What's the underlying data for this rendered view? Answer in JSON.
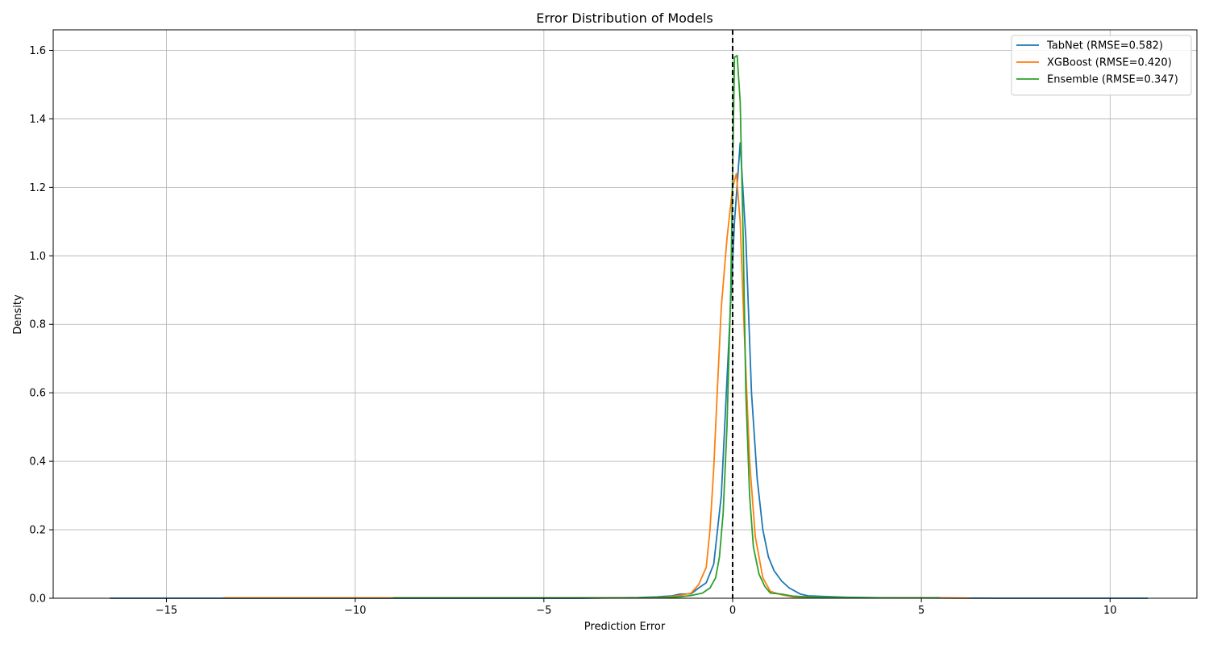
{
  "chart_data": {
    "type": "line",
    "title": "Error Distribution of Models",
    "xlabel": "Prediction Error",
    "ylabel": "Density",
    "xlim": [
      -18,
      12.3
    ],
    "ylim": [
      0,
      1.66
    ],
    "x_ticks": [
      -15,
      -10,
      -5,
      0,
      5,
      10
    ],
    "x_tick_labels": [
      "−15",
      "−10",
      "−5",
      "0",
      "5",
      "10"
    ],
    "y_ticks": [
      0.0,
      0.2,
      0.4,
      0.6,
      0.8,
      1.0,
      1.2,
      1.4,
      1.6
    ],
    "y_tick_labels": [
      "0.0",
      "0.2",
      "0.4",
      "0.6",
      "0.8",
      "1.0",
      "1.2",
      "1.4",
      "1.6"
    ],
    "grid": true,
    "legend_position": "top-right",
    "reference_line": {
      "x": 0,
      "style": "dashed",
      "color": "#000000"
    },
    "series": [
      {
        "name": "TabNet (RMSE=0.582)",
        "color": "#1f77b4",
        "points": [
          [
            -16.5,
            0.0
          ],
          [
            -14,
            0.0
          ],
          [
            -10,
            0.0
          ],
          [
            -6,
            0.0
          ],
          [
            -4,
            0.0
          ],
          [
            -2.5,
            0.002
          ],
          [
            -2,
            0.004
          ],
          [
            -1.6,
            0.007
          ],
          [
            -1.4,
            0.012
          ],
          [
            -1.1,
            0.013
          ],
          [
            -0.9,
            0.03
          ],
          [
            -0.7,
            0.045
          ],
          [
            -0.5,
            0.1
          ],
          [
            -0.3,
            0.3
          ],
          [
            -0.1,
            0.75
          ],
          [
            0.05,
            1.1
          ],
          [
            0.2,
            1.33
          ],
          [
            0.35,
            1.05
          ],
          [
            0.5,
            0.6
          ],
          [
            0.65,
            0.35
          ],
          [
            0.8,
            0.2
          ],
          [
            0.95,
            0.12
          ],
          [
            1.1,
            0.08
          ],
          [
            1.3,
            0.05
          ],
          [
            1.5,
            0.03
          ],
          [
            1.8,
            0.012
          ],
          [
            2.0,
            0.007
          ],
          [
            2.5,
            0.005
          ],
          [
            3.0,
            0.003
          ],
          [
            4.0,
            0.001
          ],
          [
            5.0,
            0.001
          ],
          [
            7.0,
            0.0
          ],
          [
            9.0,
            0.0
          ],
          [
            11.0,
            0.0
          ]
        ]
      },
      {
        "name": "XGBoost (RMSE=0.420)",
        "color": "#ff7f0e",
        "points": [
          [
            -13.5,
            0.001
          ],
          [
            -10,
            0.001
          ],
          [
            -6,
            0.001
          ],
          [
            -4,
            0.001
          ],
          [
            -2.5,
            0.001
          ],
          [
            -1.8,
            0.003
          ],
          [
            -1.4,
            0.008
          ],
          [
            -1.1,
            0.015
          ],
          [
            -0.9,
            0.04
          ],
          [
            -0.7,
            0.09
          ],
          [
            -0.6,
            0.2
          ],
          [
            -0.5,
            0.38
          ],
          [
            -0.4,
            0.62
          ],
          [
            -0.3,
            0.85
          ],
          [
            -0.15,
            1.05
          ],
          [
            0.0,
            1.2
          ],
          [
            0.1,
            1.24
          ],
          [
            0.2,
            1.1
          ],
          [
            0.3,
            0.8
          ],
          [
            0.45,
            0.4
          ],
          [
            0.6,
            0.18
          ],
          [
            0.8,
            0.06
          ],
          [
            1.0,
            0.02
          ],
          [
            1.3,
            0.01
          ],
          [
            1.6,
            0.004
          ],
          [
            2.5,
            0.002
          ],
          [
            4.0,
            0.001
          ],
          [
            5.5,
            0.001
          ],
          [
            6.3,
            0.0
          ]
        ]
      },
      {
        "name": "Ensemble (RMSE=0.347)",
        "color": "#2ca02c",
        "points": [
          [
            -9,
            0.001
          ],
          [
            -6,
            0.001
          ],
          [
            -4,
            0.001
          ],
          [
            -2.5,
            0.001
          ],
          [
            -1.8,
            0.002
          ],
          [
            -1.4,
            0.004
          ],
          [
            -1.1,
            0.008
          ],
          [
            -0.8,
            0.015
          ],
          [
            -0.6,
            0.03
          ],
          [
            -0.45,
            0.06
          ],
          [
            -0.35,
            0.12
          ],
          [
            -0.25,
            0.25
          ],
          [
            -0.15,
            0.5
          ],
          [
            -0.05,
            0.9
          ],
          [
            0.0,
            1.25
          ],
          [
            0.05,
            1.58
          ],
          [
            0.12,
            1.585
          ],
          [
            0.2,
            1.45
          ],
          [
            0.28,
            1.05
          ],
          [
            0.35,
            0.6
          ],
          [
            0.45,
            0.3
          ],
          [
            0.55,
            0.15
          ],
          [
            0.7,
            0.07
          ],
          [
            0.85,
            0.035
          ],
          [
            1.0,
            0.015
          ],
          [
            1.3,
            0.012
          ],
          [
            1.6,
            0.006
          ],
          [
            2.0,
            0.004
          ],
          [
            3.0,
            0.002
          ],
          [
            4.5,
            0.001
          ],
          [
            5.5,
            0.001
          ]
        ]
      }
    ]
  }
}
